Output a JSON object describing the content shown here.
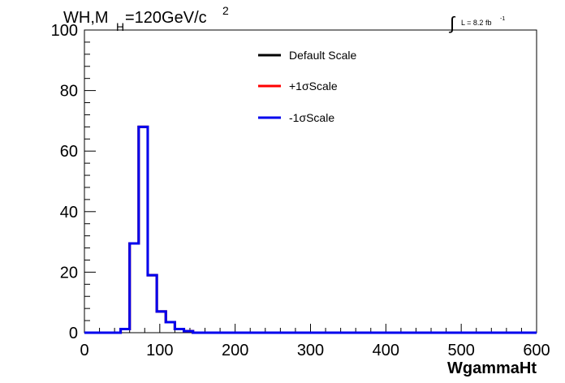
{
  "chart_data": {
    "type": "line",
    "title": {
      "main_prefix": "WH,M",
      "subscript": "H",
      "main_suffix": "=120GeV/c",
      "superscript": "2"
    },
    "lumi": {
      "integral_symbol": "∫",
      "text": "L = 8.2 fb",
      "exponent": "-1"
    },
    "xlabel": "WgammaHt",
    "ylabel": "",
    "xlim": [
      0,
      600
    ],
    "ylim": [
      0,
      100
    ],
    "x_ticks": [
      0,
      100,
      200,
      300,
      400,
      500,
      600
    ],
    "y_ticks": [
      0,
      20,
      40,
      60,
      80,
      100
    ],
    "grid": false,
    "legend_position": "top-center",
    "legend": [
      {
        "label": "Default Scale",
        "color": "#000000"
      },
      {
        "label": "+1σScale",
        "color": "#ff0000"
      },
      {
        "label": "-1σScale",
        "color": "#0000ee"
      }
    ],
    "bin_width": 12,
    "bin_edges_start": 0,
    "series": [
      {
        "name": "Default Scale",
        "color": "#000000",
        "values": [
          0,
          0,
          0,
          0,
          1.2,
          29.5,
          68,
          19,
          7,
          3.5,
          1.2,
          0.5,
          0,
          0,
          0,
          0,
          0,
          0,
          0,
          0,
          0,
          0,
          0,
          0,
          0,
          0,
          0,
          0,
          0,
          0,
          0,
          0,
          0,
          0,
          0,
          0,
          0,
          0,
          0,
          0,
          0,
          0,
          0,
          0,
          0,
          0,
          0,
          0,
          0,
          0
        ]
      },
      {
        "name": "+1σScale",
        "color": "#ff0000",
        "values": [
          0,
          0,
          0,
          0,
          1.2,
          29.5,
          68,
          19,
          7,
          3.5,
          1.2,
          0.5,
          0,
          0,
          0,
          0,
          0,
          0,
          0,
          0,
          0,
          0,
          0,
          0,
          0,
          0,
          0,
          0,
          0,
          0,
          0,
          0,
          0,
          0,
          0,
          0,
          0,
          0,
          0,
          0,
          0,
          0,
          0,
          0,
          0,
          0,
          0,
          0,
          0,
          0
        ]
      },
      {
        "name": "-1σScale",
        "color": "#0000ee",
        "values": [
          0,
          0,
          0,
          0,
          1.2,
          29.5,
          68,
          19,
          7,
          3.5,
          1.2,
          0.5,
          0,
          0,
          0,
          0,
          0,
          0,
          0,
          0,
          0,
          0,
          0,
          0,
          0,
          0,
          0,
          0,
          0,
          0,
          0,
          0,
          0,
          0,
          0,
          0,
          0,
          0,
          0,
          0,
          0,
          0,
          0,
          0,
          0,
          0,
          0,
          0,
          0,
          0
        ]
      }
    ]
  }
}
